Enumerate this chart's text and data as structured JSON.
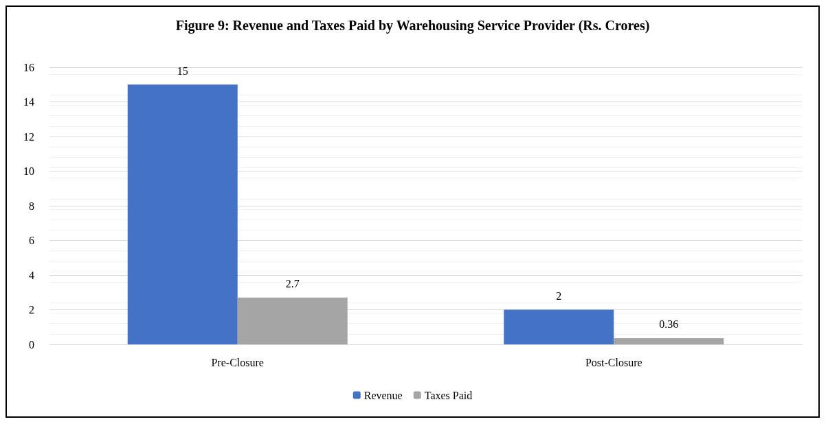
{
  "chart_data": {
    "type": "bar",
    "title": "Figure 9: Revenue and Taxes Paid by Warehousing Service Provider (Rs. Crores)",
    "categories": [
      "Pre-Closure",
      "Post-Closure"
    ],
    "series": [
      {
        "name": "Revenue",
        "color": "#4472c4",
        "values": [
          15,
          2
        ]
      },
      {
        "name": "Taxes Paid",
        "color": "#a5a5a5",
        "values": [
          2.7,
          0.36
        ]
      }
    ],
    "ylim": [
      0,
      16
    ],
    "yticks": [
      0,
      2,
      4,
      6,
      8,
      10,
      12,
      14,
      16
    ],
    "grid": "y",
    "legend": "bottom",
    "data_labels": true
  }
}
